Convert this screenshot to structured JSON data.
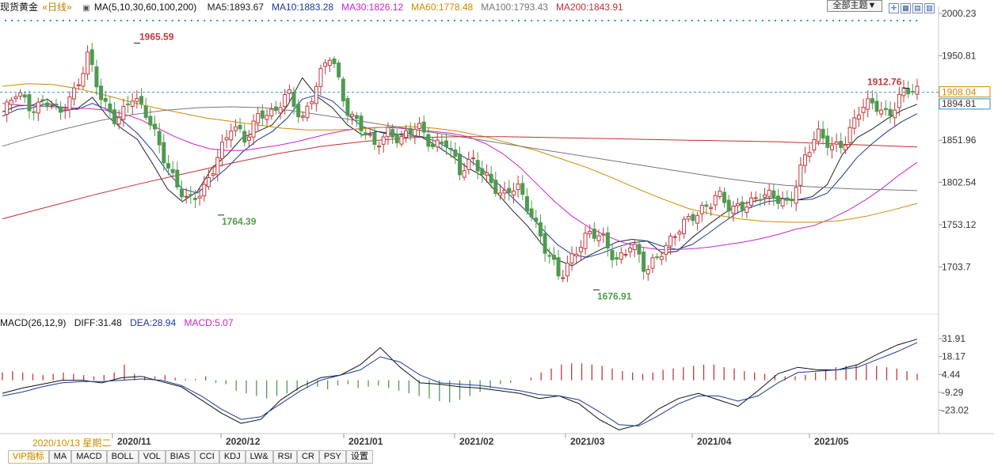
{
  "header": {
    "instrument": "现货黄金",
    "period": "«日线»",
    "ma_label": "MA(5,10,30,60,100,200)",
    "ma_values": [
      {
        "text": "MA5:1893.67",
        "color": "#222222"
      },
      {
        "text": "MA10:1883.28",
        "color": "#1a3a9a"
      },
      {
        "text": "MA30:1826.12",
        "color": "#cc22cc"
      },
      {
        "text": "MA60:1778.48",
        "color": "#d08a00"
      },
      {
        "text": "MA100:1793.43",
        "color": "#777777"
      },
      {
        "text": "MA200:1843.91",
        "color": "#c03030"
      }
    ],
    "theme_button": "全部主题▼"
  },
  "chart_data": [
    {
      "type": "candlestick",
      "y_ticks": [
        2000.23,
        1950.81,
        1908.04,
        1894.81,
        1851.96,
        1802.54,
        1753.12,
        1703.7
      ],
      "ylim": [
        1655,
        2000.23
      ],
      "x_labels": [
        "2020/11",
        "2020/12",
        "2021/01",
        "2021/02",
        "2021/03",
        "2021/04",
        "2021/05"
      ],
      "annotations": [
        {
          "text": "1965.59",
          "value": 1965.59
        },
        {
          "text": "1764.39",
          "value": 1764.39
        },
        {
          "text": "1676.91",
          "value": 1676.91
        },
        {
          "text": "1912.76",
          "value": 1912.76
        }
      ],
      "current_price": 1908.04,
      "prev_close": 1894.81,
      "colors": {
        "up": "#c0393b",
        "down": "#4f9a4f"
      },
      "anchors": [
        1880,
        1905,
        1892,
        1900,
        1878,
        1910,
        1955,
        1890,
        1875,
        1908,
        1880,
        1845,
        1810,
        1775,
        1790,
        1835,
        1865,
        1850,
        1890,
        1880,
        1905,
        1880,
        1918,
        1950,
        1895,
        1870,
        1840,
        1865,
        1855,
        1865,
        1848,
        1855,
        1810,
        1830,
        1810,
        1780,
        1800,
        1770,
        1720,
        1690,
        1725,
        1740,
        1735,
        1715,
        1730,
        1695,
        1725,
        1740,
        1755,
        1775,
        1790,
        1765,
        1780,
        1790,
        1780,
        1778,
        1830,
        1855,
        1845,
        1855,
        1885,
        1895,
        1885,
        1905,
        1908
      ],
      "ma_lines": [
        {
          "name": "MA5",
          "color": "#222222",
          "values": [
            1885,
            1892,
            1893,
            1900,
            1886,
            1889,
            1902,
            1880,
            1865,
            1853,
            1825,
            1795,
            1780,
            1792,
            1820,
            1835,
            1855,
            1862,
            1870,
            1892,
            1925,
            1903,
            1890,
            1870,
            1858,
            1862,
            1858,
            1860,
            1855,
            1845,
            1833,
            1820,
            1810,
            1790,
            1770,
            1752,
            1730,
            1712,
            1705,
            1716,
            1725,
            1733,
            1736,
            1734,
            1720,
            1722,
            1738,
            1752,
            1765,
            1776,
            1780,
            1784,
            1784,
            1782,
            1786,
            1800,
            1835,
            1855,
            1865,
            1877,
            1887,
            1894
          ]
        },
        {
          "name": "MA10",
          "color": "#1a3a9a",
          "values": [
            1880,
            1888,
            1890,
            1895,
            1890,
            1888,
            1895,
            1888,
            1875,
            1860,
            1840,
            1815,
            1795,
            1790,
            1805,
            1820,
            1838,
            1852,
            1862,
            1878,
            1900,
            1905,
            1898,
            1882,
            1868,
            1862,
            1860,
            1857,
            1856,
            1850,
            1840,
            1830,
            1818,
            1802,
            1785,
            1768,
            1748,
            1730,
            1718,
            1715,
            1720,
            1727,
            1732,
            1734,
            1728,
            1724,
            1730,
            1742,
            1755,
            1767,
            1774,
            1780,
            1782,
            1782,
            1783,
            1790,
            1810,
            1832,
            1848,
            1862,
            1874,
            1883
          ]
        },
        {
          "name": "MA30",
          "color": "#cc22cc",
          "values": [
            1895,
            1893,
            1892,
            1891,
            1890,
            1889,
            1887,
            1883,
            1876,
            1866,
            1856,
            1848,
            1842,
            1840,
            1840,
            1843,
            1846,
            1850,
            1855,
            1860,
            1864,
            1866,
            1867,
            1866,
            1864,
            1862,
            1860,
            1856,
            1848,
            1836,
            1820,
            1800,
            1780,
            1763,
            1750,
            1740,
            1732,
            1727,
            1724,
            1724,
            1725,
            1727,
            1730,
            1733,
            1737,
            1742,
            1748,
            1752,
            1760,
            1770,
            1782,
            1796,
            1812,
            1826
          ]
        },
        {
          "name": "MA60",
          "color": "#d08a00",
          "values": [
            1915,
            1918,
            1917,
            1912,
            1905,
            1897,
            1890,
            1884,
            1878,
            1874,
            1870,
            1866,
            1864,
            1864,
            1865,
            1867,
            1868,
            1866,
            1862,
            1856,
            1848,
            1840,
            1830,
            1820,
            1808,
            1795,
            1783,
            1772,
            1765,
            1760,
            1757,
            1756,
            1756,
            1758,
            1763,
            1770,
            1778
          ]
        },
        {
          "name": "MA100",
          "color": "#777777",
          "values": [
            1845,
            1856,
            1866,
            1875,
            1882,
            1887,
            1890,
            1891,
            1890,
            1886,
            1880,
            1874,
            1868,
            1862,
            1856,
            1850,
            1844,
            1838,
            1832,
            1826,
            1820,
            1814,
            1808,
            1803,
            1799,
            1797,
            1795,
            1794,
            1793
          ]
        },
        {
          "name": "MA200",
          "color": "#c03030",
          "values": [
            1760,
            1774,
            1788,
            1801,
            1813,
            1825,
            1836,
            1845,
            1851,
            1855,
            1856,
            1856,
            1855,
            1854,
            1853,
            1852,
            1851,
            1850,
            1848,
            1846,
            1844
          ]
        }
      ]
    },
    {
      "type": "macd",
      "y_ticks": [
        31.91,
        18.17,
        4.44,
        -9.29,
        -23.02
      ],
      "ylim": [
        -36,
        38
      ],
      "diff": [
        -10,
        -6,
        -3,
        0,
        0,
        -2,
        2,
        3,
        -1,
        -5,
        -15,
        -25,
        -33,
        -30,
        -15,
        -5,
        2,
        4,
        12,
        25,
        10,
        -2,
        -3,
        -5,
        -6,
        -8,
        -10,
        -14,
        -12,
        -18,
        -30,
        -38,
        -34,
        -22,
        -14,
        -10,
        -15,
        -20,
        -8,
        5,
        10,
        8,
        8,
        12,
        20,
        27,
        31.48
      ],
      "dea": [
        -12,
        -9,
        -5,
        -2,
        -1,
        -1,
        0,
        1,
        0,
        -4,
        -12,
        -22,
        -30,
        -28,
        -18,
        -8,
        0,
        4,
        8,
        18,
        14,
        4,
        -2,
        -3,
        -4,
        -6,
        -8,
        -11,
        -12,
        -15,
        -24,
        -34,
        -35,
        -27,
        -18,
        -12,
        -12,
        -16,
        -12,
        -2,
        6,
        7,
        8,
        10,
        16,
        22,
        28.94
      ],
      "hist": [
        6,
        7,
        6,
        5,
        4,
        5,
        6,
        5,
        4,
        3,
        4,
        6,
        12,
        5,
        3,
        3,
        4,
        2,
        1,
        1,
        3,
        -2,
        -3,
        -8,
        -10,
        -12,
        -14,
        -12,
        -10,
        -8,
        -6,
        -5,
        -7,
        -4,
        -3,
        -6,
        -5,
        -4,
        -6,
        -8,
        -10,
        -12,
        -14,
        -16,
        -17,
        -15,
        -12,
        -9,
        -6,
        -3,
        -2,
        0,
        2,
        6,
        9,
        12,
        13,
        13,
        12,
        11,
        9,
        7,
        6,
        5,
        6,
        8,
        9,
        10,
        11,
        12,
        12,
        10,
        9,
        7,
        6,
        5,
        4,
        3,
        3,
        4,
        6,
        8,
        10,
        11,
        12,
        12,
        11,
        10,
        9,
        7,
        5
      ]
    }
  ],
  "macd_header": {
    "label": "MACD(26,12,9)",
    "diff": "DIFF:31.48",
    "dea": "DEA:28.94",
    "macd": "MACD:5.07"
  },
  "date_box": "2020/10/13 星期二",
  "tabs": [
    "VIP指标",
    "MA",
    "MACD",
    "BOLL",
    "VOL",
    "BIAS",
    "CCI",
    "KDJ",
    "LW&",
    "RSI",
    "CR",
    "PSY",
    "设置"
  ]
}
